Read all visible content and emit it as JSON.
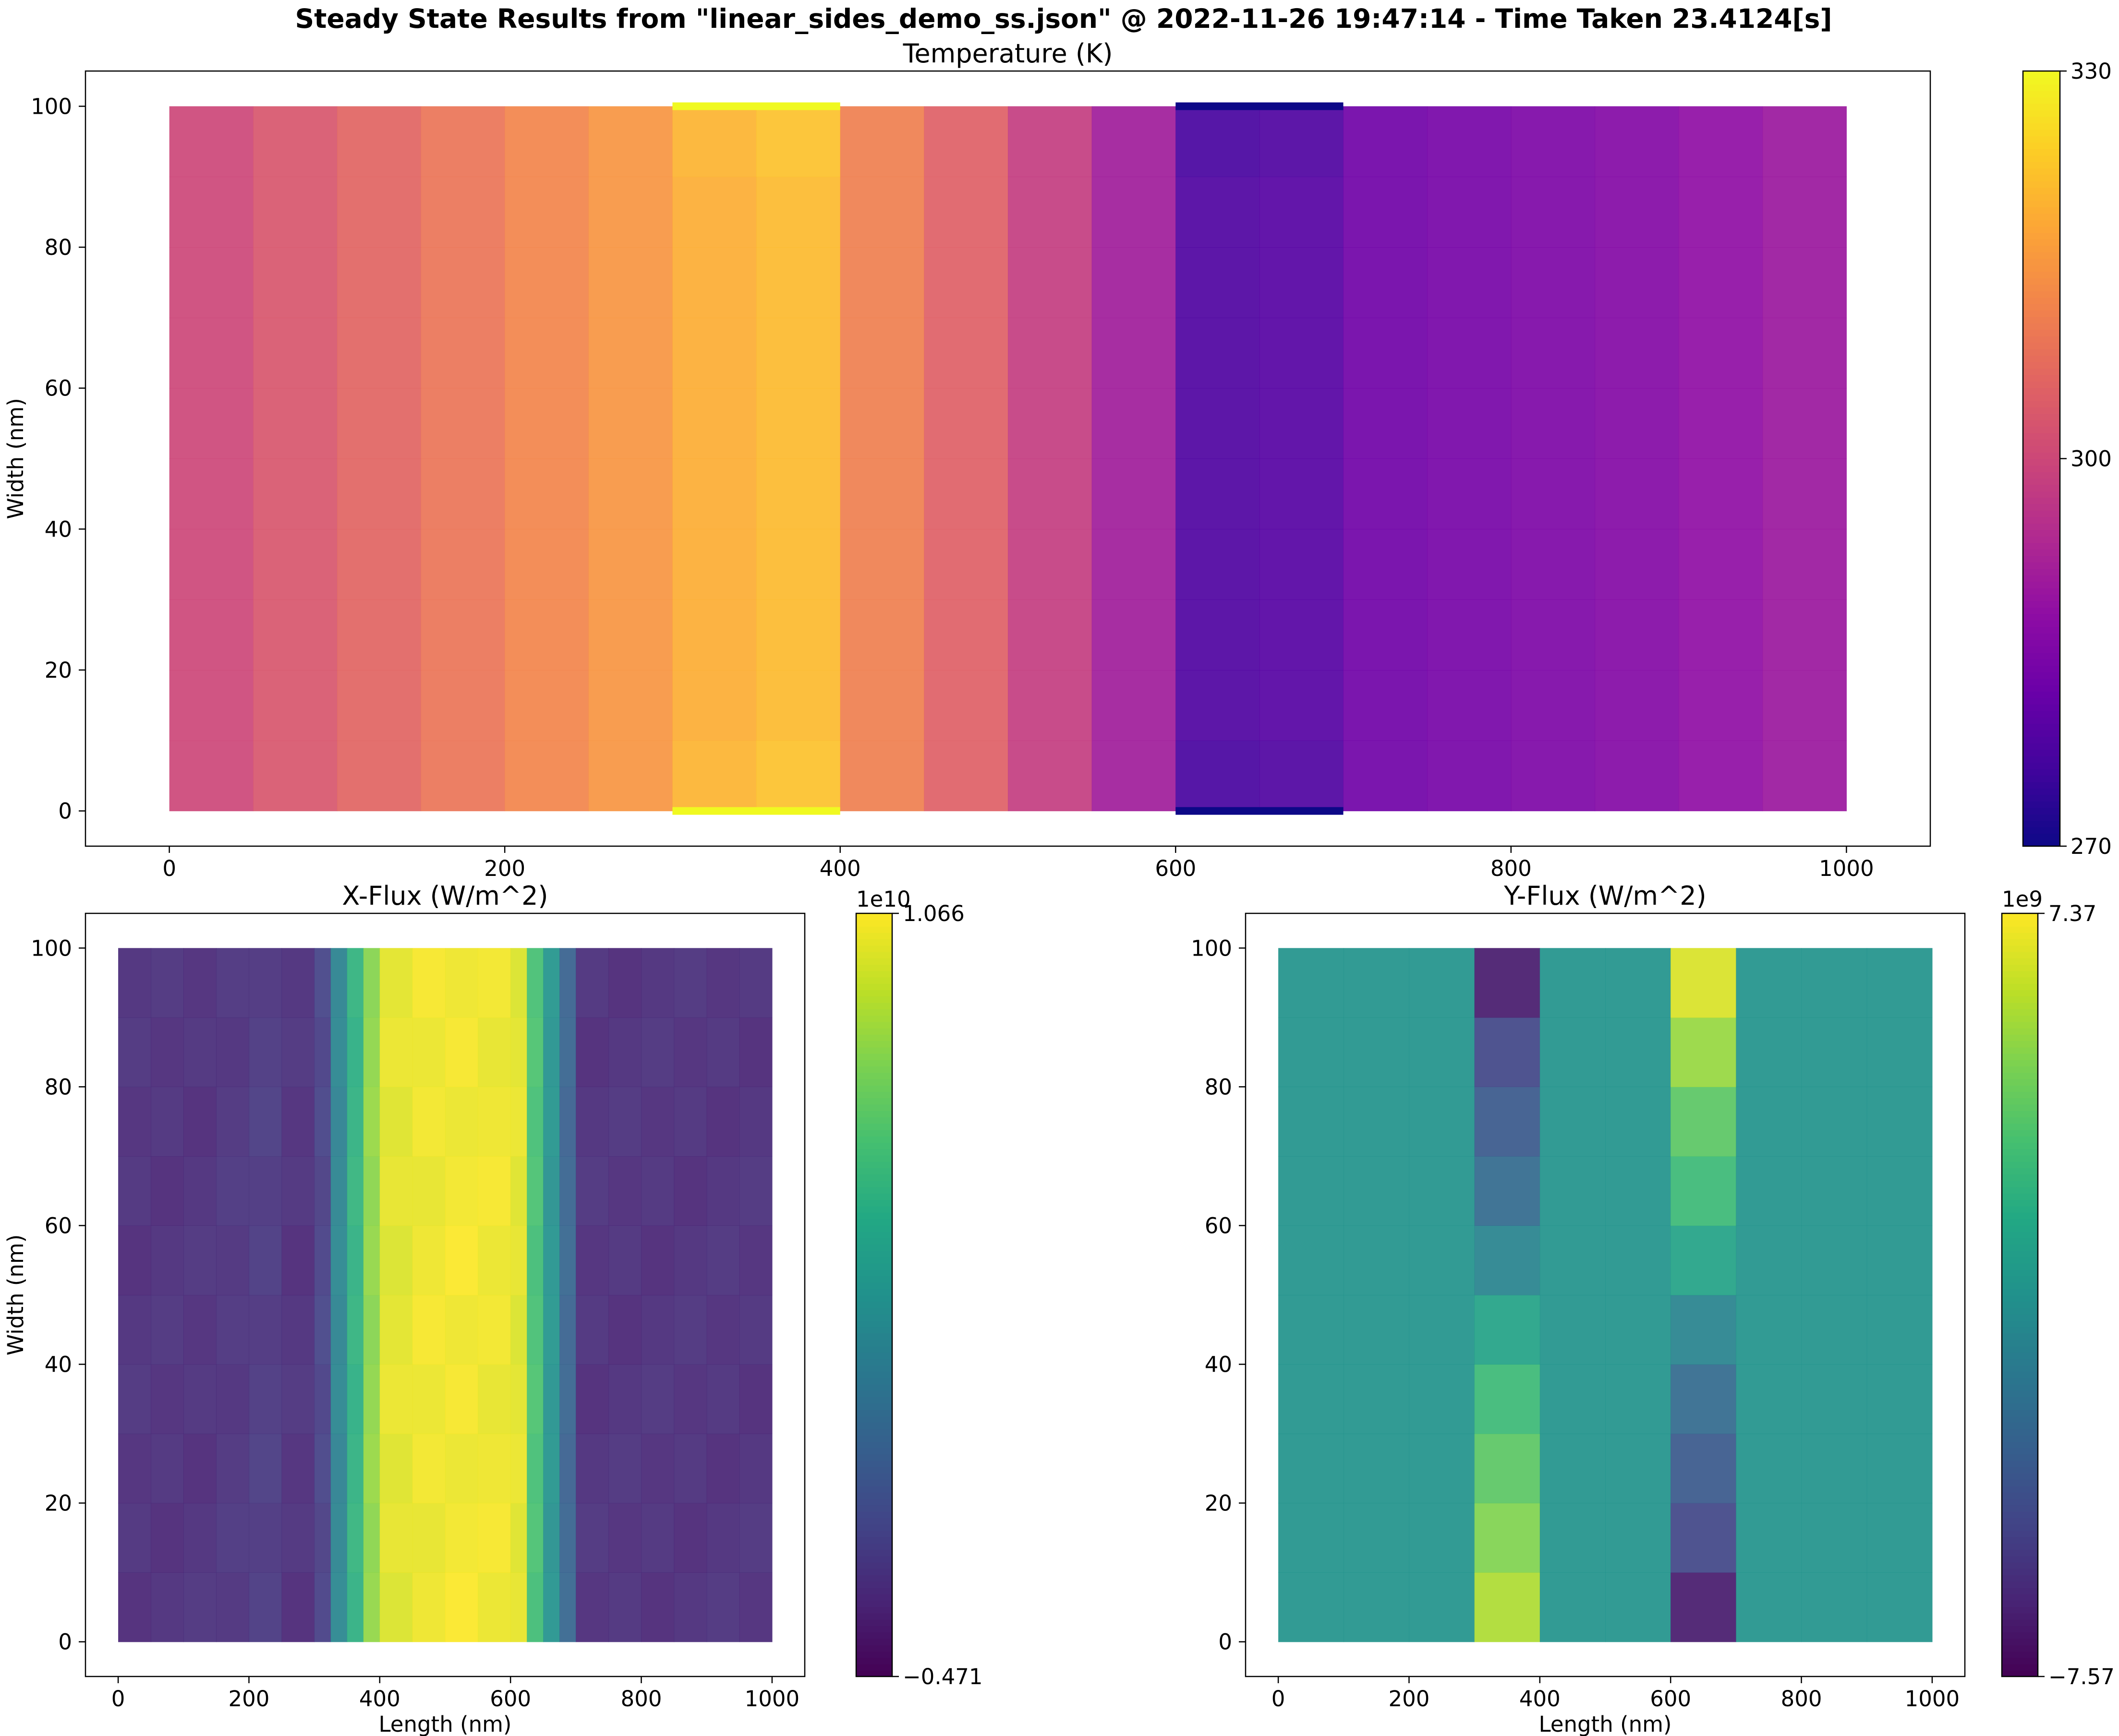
{
  "figure": {
    "suptitle": "Steady State Results from \"linear_sides_demo_ss.json\" @ 2022-11-26 19:47:14 - Time Taken 23.4124[s]"
  },
  "chart_data": [
    {
      "id": "temperature",
      "type": "heatmap",
      "title": "Temperature (K)",
      "xlabel": "",
      "ylabel": "Width (nm)",
      "xlim": [
        -50,
        1050
      ],
      "ylim": [
        -5,
        105
      ],
      "xticks": [
        0,
        200,
        400,
        600,
        800,
        1000
      ],
      "yticks": [
        0,
        20,
        40,
        60,
        80,
        100
      ],
      "colormap": "plasma",
      "colorbar": {
        "min": 270,
        "max": 330,
        "ticks": [
          "270",
          "300",
          "330"
        ],
        "tick_values": [
          270,
          300,
          330
        ],
        "offset_label": ""
      },
      "x_edges": [
        0,
        50,
        100,
        150,
        200,
        250,
        300,
        350,
        400,
        450,
        500,
        550,
        600,
        650,
        700,
        750,
        800,
        850,
        900,
        950,
        1000
      ],
      "y_edges": [
        0,
        10,
        20,
        30,
        40,
        50,
        60,
        70,
        80,
        90,
        100
      ],
      "column_values": [
        300,
        303,
        306,
        309,
        312,
        315,
        319,
        321,
        311,
        305,
        298,
        291,
        278,
        279,
        283,
        284,
        285,
        286,
        288,
        290
      ],
      "column_delta_edges": [
        0,
        0,
        0,
        0,
        0,
        0,
        1,
        1,
        0,
        0,
        0,
        0,
        -1,
        -1,
        0,
        0,
        0,
        0,
        0,
        0
      ],
      "boundary_lines": [
        {
          "x": [
            300,
            400
          ],
          "y": 100,
          "value": 330
        },
        {
          "x": [
            300,
            400
          ],
          "y": 0,
          "value": 330
        },
        {
          "x": [
            600,
            700
          ],
          "y": 100,
          "value": 270
        },
        {
          "x": [
            600,
            700
          ],
          "y": 0,
          "value": 270
        }
      ]
    },
    {
      "id": "xflux",
      "type": "heatmap",
      "title": "X-Flux (W/m^2)",
      "xlabel": "Length (nm)",
      "ylabel": "Width (nm)",
      "xlim": [
        -50,
        1050
      ],
      "ylim": [
        -5,
        105
      ],
      "xticks": [
        0,
        200,
        400,
        600,
        800,
        1000
      ],
      "yticks": [
        0,
        20,
        40,
        60,
        80,
        100
      ],
      "colormap": "viridis",
      "colorbar": {
        "min": -0.471,
        "max": 1.066,
        "ticks": [
          "−0.471",
          "1.066"
        ],
        "tick_values": [
          -0.471,
          1.066
        ],
        "offset_label": "1e10"
      },
      "x_edges": [
        0,
        50,
        100,
        150,
        200,
        250,
        300,
        325,
        350,
        375,
        400,
        450,
        500,
        550,
        600,
        625,
        650,
        675,
        700,
        750,
        800,
        850,
        900,
        950,
        1000
      ],
      "y_edges": [
        0,
        10,
        20,
        30,
        40,
        50,
        60,
        70,
        80,
        90,
        100
      ],
      "column_values": [
        -0.3,
        -0.3,
        -0.3,
        -0.28,
        -0.25,
        -0.3,
        -0.2,
        0.2,
        0.5,
        0.8,
        1.0,
        1.03,
        1.04,
        1.03,
        1.0,
        0.6,
        0.3,
        0.0,
        -0.3,
        -0.3,
        -0.3,
        -0.3,
        -0.3,
        -0.3
      ],
      "column_delta_edges": [
        0,
        0,
        0,
        0,
        0,
        0,
        0,
        0,
        0,
        0,
        0,
        0,
        0,
        0,
        0,
        0,
        0,
        0,
        0,
        0,
        0,
        0,
        0,
        0
      ]
    },
    {
      "id": "yflux",
      "type": "heatmap",
      "title": "Y-Flux (W/m^2)",
      "xlabel": "Length (nm)",
      "ylabel": "",
      "xlim": [
        -50,
        1050
      ],
      "ylim": [
        -5,
        105
      ],
      "xticks": [
        0,
        200,
        400,
        600,
        800,
        1000
      ],
      "yticks": [
        0,
        20,
        40,
        60,
        80,
        100
      ],
      "colormap": "viridis",
      "colorbar": {
        "min": -7.57,
        "max": 7.37,
        "ticks": [
          "−7.57",
          "7.37"
        ],
        "tick_values": [
          -7.57,
          7.37
        ],
        "offset_label": "1e9"
      },
      "x_edges": [
        0,
        100,
        200,
        300,
        400,
        500,
        600,
        700,
        800,
        900,
        1000
      ],
      "y_edges": [
        0,
        10,
        20,
        30,
        40,
        50,
        60,
        70,
        80,
        90,
        100
      ],
      "cells": [
        [
          0,
          0,
          0,
          5.5,
          0,
          0,
          -6.5,
          0,
          0,
          0
        ],
        [
          0,
          0,
          0,
          4.5,
          0,
          0,
          -4.5,
          0,
          0,
          0
        ],
        [
          0,
          0,
          0,
          3.5,
          0,
          0,
          -3.5,
          0,
          0,
          0
        ],
        [
          0,
          0,
          0,
          2.5,
          0,
          0,
          -2.5,
          0,
          0,
          0
        ],
        [
          0,
          0,
          0,
          1.0,
          0,
          0,
          -1.0,
          0,
          0,
          0
        ],
        [
          0,
          0,
          0,
          -1.0,
          0,
          0,
          1.0,
          0,
          0,
          0
        ],
        [
          0,
          0,
          0,
          -2.5,
          0,
          0,
          2.5,
          0,
          0,
          0
        ],
        [
          0,
          0,
          0,
          -3.5,
          0,
          0,
          3.5,
          0,
          0,
          0
        ],
        [
          0,
          0,
          0,
          -4.5,
          0,
          0,
          5.0,
          0,
          0,
          0
        ],
        [
          0,
          0,
          0,
          -6.5,
          0,
          0,
          6.5,
          0,
          0,
          0
        ]
      ]
    }
  ]
}
